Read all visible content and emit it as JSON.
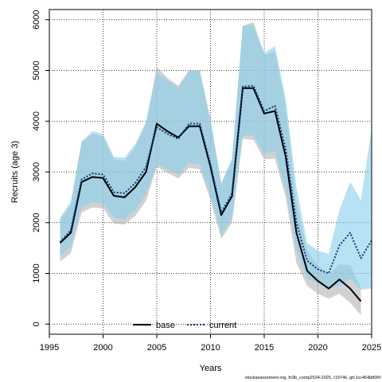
{
  "chart_data": {
    "type": "line",
    "title": "",
    "xlabel": "Years",
    "ylabel": "Recruits (age 3)",
    "xlim": [
      1995,
      2025
    ],
    "ylim": [
      -200,
      6200
    ],
    "xticks": [
      1995,
      2000,
      2005,
      2010,
      2015,
      2020,
      2025
    ],
    "yticks": [
      0,
      1000,
      2000,
      3000,
      4000,
      5000,
      6000
    ],
    "grid": true,
    "legend_position": "bottom-center",
    "series": [
      {
        "name": "base",
        "color": "#000000",
        "band_color": "#b3b3b3",
        "line_style": "solid",
        "x": [
          1996,
          1997,
          1998,
          1999,
          2000,
          2001,
          2002,
          2003,
          2004,
          2005,
          2006,
          2007,
          2008,
          2009,
          2010,
          2011,
          2012,
          2013,
          2014,
          2015,
          2016,
          2017,
          2018,
          2019,
          2020,
          2021,
          2022,
          2023,
          2024
        ],
        "y": [
          1600,
          1800,
          2800,
          2900,
          2880,
          2530,
          2500,
          2700,
          3000,
          3950,
          3800,
          3680,
          3900,
          3900,
          3100,
          2150,
          2520,
          4650,
          4650,
          4150,
          4200,
          3300,
          1800,
          1050,
          850,
          700,
          880,
          700,
          450
        ],
        "lower": [
          1230,
          1400,
          2200,
          2300,
          2280,
          1980,
          1960,
          2130,
          2430,
          3100,
          2980,
          2870,
          3080,
          3050,
          2450,
          1680,
          2000,
          3650,
          3630,
          3250,
          3260,
          2500,
          1200,
          750,
          600,
          500,
          600,
          420,
          180
        ],
        "upper": [
          2050,
          2350,
          3580,
          3750,
          3700,
          3250,
          3220,
          3480,
          3960,
          5080,
          4850,
          4700,
          5000,
          5000,
          4000,
          2750,
          3230,
          5880,
          5950,
          5300,
          5380,
          4300,
          2400,
          1450,
          1150,
          970,
          1180,
          1160,
          720
        ]
      },
      {
        "name": "current",
        "color": "#0b3a80",
        "band_color": "#87ceeb",
        "line_style": "dotted",
        "x": [
          1996,
          1997,
          1998,
          1999,
          2000,
          2001,
          2002,
          2003,
          2004,
          2005,
          2006,
          2007,
          2008,
          2009,
          2010,
          2011,
          2012,
          2013,
          2014,
          2015,
          2016,
          2017,
          2018,
          2019,
          2020,
          2021,
          2022,
          2023,
          2024,
          2025
        ],
        "y": [
          1620,
          1850,
          2850,
          2970,
          2950,
          2600,
          2580,
          2780,
          3100,
          3880,
          3750,
          3650,
          3950,
          3950,
          3150,
          2200,
          2570,
          4680,
          4700,
          4200,
          4300,
          3450,
          2000,
          1250,
          1080,
          1000,
          1550,
          1800,
          1300,
          1650
        ],
        "lower": [
          1350,
          1520,
          2300,
          2400,
          2380,
          2100,
          2060,
          2250,
          2560,
          3150,
          3050,
          2950,
          3180,
          3150,
          2550,
          1770,
          2080,
          3720,
          3720,
          3350,
          3400,
          2650,
          1450,
          900,
          800,
          700,
          750,
          900,
          680,
          700
        ],
        "upper": [
          2100,
          2420,
          3600,
          3800,
          3750,
          3300,
          3280,
          3550,
          4000,
          4950,
          4800,
          4650,
          5000,
          5000,
          4050,
          2780,
          3260,
          5880,
          5900,
          5350,
          5480,
          4450,
          2700,
          1600,
          1450,
          1380,
          2250,
          2800,
          2450,
          3850
        ]
      }
    ]
  },
  "footer_text": "stockassessment.org, fn3b_comp2024-2025, r19746, git:1cc464b806f"
}
